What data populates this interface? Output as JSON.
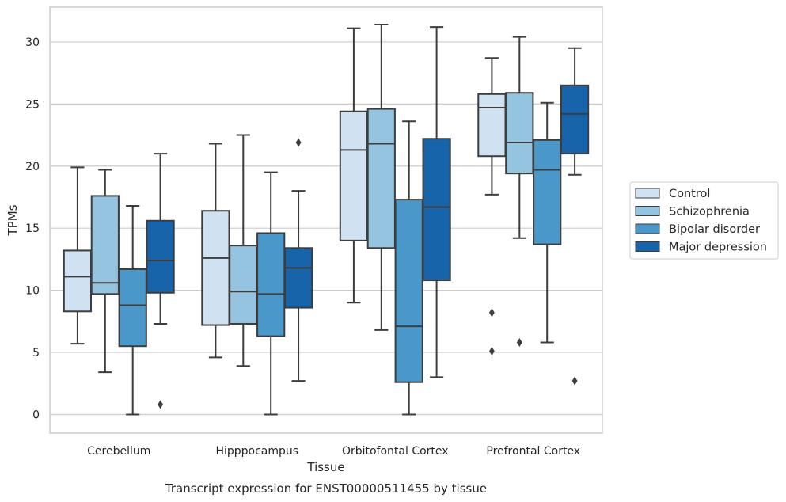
{
  "chart_data": {
    "type": "boxplot",
    "title": "",
    "caption": "Transcript expression for ENST00000511455 by tissue",
    "xlabel": "Tissue",
    "ylabel": "TPMs",
    "ylim": [
      -1.5,
      32.8
    ],
    "yticks": [
      0,
      5,
      10,
      15,
      20,
      25,
      30
    ],
    "grid": "horizontal",
    "legend_position": "right",
    "categories": [
      "Cerebellum",
      "Hipppocampus",
      "Orbitofontal Cortex",
      "Prefrontal Cortex"
    ],
    "series": [
      {
        "name": "Control",
        "color": "#d0e1f2",
        "boxes": [
          {
            "whislo": 5.7,
            "q1": 8.3,
            "med": 11.1,
            "q3": 13.2,
            "whishi": 19.9,
            "fliers": []
          },
          {
            "whislo": 4.6,
            "q1": 7.2,
            "med": 12.6,
            "q3": 16.4,
            "whishi": 21.8,
            "fliers": []
          },
          {
            "whislo": 9.0,
            "q1": 14.0,
            "med": 21.3,
            "q3": 24.4,
            "whishi": 31.1,
            "fliers": []
          },
          {
            "whislo": 17.7,
            "q1": 20.8,
            "med": 24.7,
            "q3": 25.8,
            "whishi": 28.7,
            "fliers": [
              8.2,
              5.1
            ]
          }
        ]
      },
      {
        "name": "Schizophrenia",
        "color": "#94c4df",
        "boxes": [
          {
            "whislo": 3.4,
            "q1": 9.7,
            "med": 10.6,
            "q3": 17.6,
            "whishi": 19.7,
            "fliers": []
          },
          {
            "whislo": 3.9,
            "q1": 7.3,
            "med": 9.9,
            "q3": 13.6,
            "whishi": 22.5,
            "fliers": []
          },
          {
            "whislo": 6.8,
            "q1": 13.4,
            "med": 21.8,
            "q3": 24.6,
            "whishi": 31.4,
            "fliers": []
          },
          {
            "whislo": 14.2,
            "q1": 19.4,
            "med": 21.9,
            "q3": 25.9,
            "whishi": 30.4,
            "fliers": [
              5.8
            ]
          }
        ]
      },
      {
        "name": "Bipolar disorder",
        "color": "#4a98c9",
        "boxes": [
          {
            "whislo": 0.0,
            "q1": 5.5,
            "med": 8.8,
            "q3": 11.7,
            "whishi": 16.8,
            "fliers": []
          },
          {
            "whislo": 0.0,
            "q1": 6.3,
            "med": 9.7,
            "q3": 14.6,
            "whishi": 19.5,
            "fliers": []
          },
          {
            "whislo": 0.0,
            "q1": 2.6,
            "med": 7.1,
            "q3": 17.3,
            "whishi": 23.6,
            "fliers": []
          },
          {
            "whislo": 5.8,
            "q1": 13.7,
            "med": 19.7,
            "q3": 22.1,
            "whishi": 25.1,
            "fliers": []
          }
        ]
      },
      {
        "name": "Major depression",
        "color": "#1764ab",
        "boxes": [
          {
            "whislo": 7.3,
            "q1": 9.8,
            "med": 12.4,
            "q3": 15.6,
            "whishi": 21.0,
            "fliers": [
              0.8
            ]
          },
          {
            "whislo": 2.7,
            "q1": 8.6,
            "med": 11.8,
            "q3": 13.4,
            "whishi": 18.0,
            "fliers": [
              21.9
            ]
          },
          {
            "whislo": 3.0,
            "q1": 10.8,
            "med": 16.7,
            "q3": 22.2,
            "whishi": 31.2,
            "fliers": []
          },
          {
            "whislo": 19.3,
            "q1": 21.0,
            "med": 24.2,
            "q3": 26.5,
            "whishi": 29.5,
            "fliers": [
              2.7
            ]
          }
        ]
      }
    ]
  }
}
